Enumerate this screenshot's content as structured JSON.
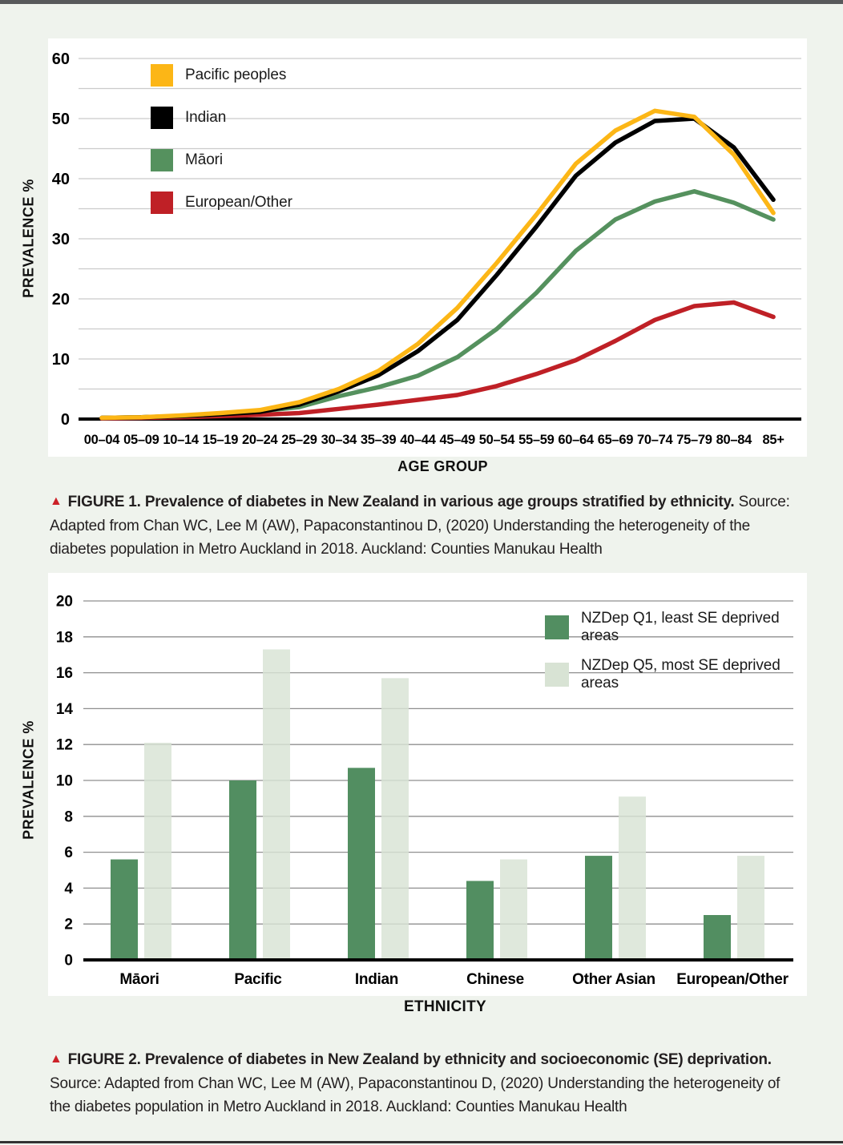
{
  "page": {
    "background": "#eff3ed",
    "panel_background": "#ffffff",
    "top_bar_color": "#58595b",
    "bottom_rule_color": "#333333",
    "caption_marker_color": "#cc2128",
    "caption_marker": "▲"
  },
  "figure1": {
    "caption_title": "FIGURE 1.  Prevalence of diabetes in New Zealand in various age groups stratified by ethnicity.",
    "caption_source": "Source: Adapted from Chan WC, Lee M (AW), Papaconstantinou D, (2020) Understanding the heterogeneity of the diabetes population in Metro Auckland in 2018. Auckland: Counties Manukau Health"
  },
  "figure2": {
    "caption_title": "FIGURE 2. Prevalence of diabetes in New Zealand by ethnicity and socioeconomic (SE) deprivation.",
    "caption_source": "Source: Adapted from Chan WC, Lee M (AW), Papaconstantinou D, (2020) Understanding the heterogeneity of the diabetes population in Metro Auckland in 2018. Auckland: Counties Manukau Health"
  },
  "chart_data": [
    {
      "type": "line",
      "title": "",
      "xlabel": "AGE GROUP",
      "ylabel": "PREVALENCE %",
      "ylim": [
        0,
        60
      ],
      "ytick_step": 10,
      "grid_step": 5,
      "grid": true,
      "grid_color": "#cbcbcb",
      "legend_position": "top-left-inside",
      "categories": [
        "00–04",
        "05–09",
        "10–14",
        "15–19",
        "20–24",
        "25–29",
        "30–34",
        "35–39",
        "40–44",
        "45–49",
        "50–54",
        "55–59",
        "60–64",
        "65–69",
        "70–74",
        "75–79",
        "80–84",
        "85+"
      ],
      "series": [
        {
          "name": "Pacific peoples",
          "color": "#fcb616",
          "values": [
            0.2,
            0.3,
            0.6,
            1.0,
            1.5,
            2.8,
            5.0,
            8.0,
            12.5,
            18.5,
            26.0,
            34.0,
            42.5,
            48.0,
            51.3,
            50.3,
            44.0,
            34.3
          ]
        },
        {
          "name": "Indian",
          "color": "#000000",
          "values": [
            0.2,
            0.3,
            0.5,
            0.8,
            1.2,
            2.4,
            4.6,
            7.3,
            11.3,
            16.5,
            24.0,
            32.0,
            40.5,
            46.0,
            49.6,
            50.0,
            45.2,
            36.5
          ]
        },
        {
          "name": "Māori",
          "color": "#55915e",
          "values": [
            0.2,
            0.3,
            0.5,
            0.8,
            1.3,
            2.0,
            3.8,
            5.3,
            7.2,
            10.3,
            15.0,
            21.0,
            28.0,
            33.2,
            36.2,
            37.9,
            36.0,
            33.2
          ]
        },
        {
          "name": "European/Other",
          "color": "#bf2026",
          "values": [
            0.1,
            0.2,
            0.3,
            0.5,
            0.7,
            1.0,
            1.7,
            2.4,
            3.2,
            4.0,
            5.5,
            7.5,
            9.8,
            13.0,
            16.5,
            18.8,
            19.4,
            17.0
          ]
        }
      ]
    },
    {
      "type": "bar",
      "title": "",
      "xlabel": "ETHNICITY",
      "ylabel": "PREVALENCE %",
      "ylim": [
        0,
        20
      ],
      "ytick_step": 2,
      "grid_step": 2,
      "grid": true,
      "grid_color": "#8f8f8f",
      "legend_position": "top-right-inside",
      "categories": [
        "Māori",
        "Pacific",
        "Indian",
        "Chinese",
        "Other Asian",
        "European/Other"
      ],
      "series": [
        {
          "name": "NZDep Q1, least SE deprived areas",
          "color": "#528e61",
          "values": [
            5.6,
            10.0,
            10.7,
            4.4,
            5.8,
            2.5
          ]
        },
        {
          "name": "NZDep Q5, most SE deprived areas",
          "color": "#d8e3d4",
          "values": [
            12.1,
            17.3,
            15.7,
            5.6,
            9.1,
            5.8
          ]
        }
      ]
    }
  ]
}
